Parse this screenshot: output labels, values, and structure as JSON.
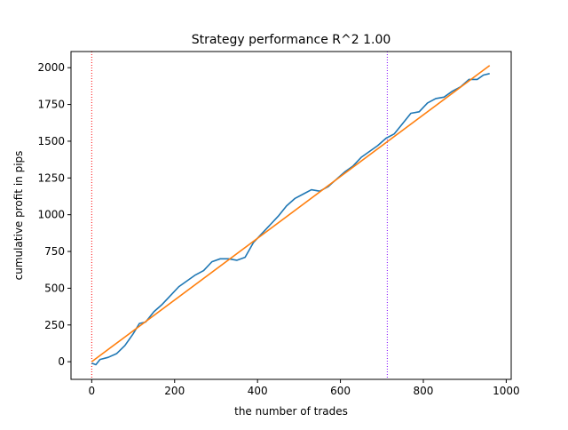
{
  "chart_data": {
    "type": "line",
    "title": "Strategy performance R^2 1.00",
    "xlabel": "the number of trades",
    "ylabel": "cumulative profit in pips",
    "xlim": [
      -50,
      1012
    ],
    "ylim": [
      -120,
      2110
    ],
    "xticks": [
      0,
      200,
      400,
      600,
      800,
      1000
    ],
    "yticks": [
      0,
      250,
      500,
      750,
      1000,
      1250,
      1500,
      1750,
      2000
    ],
    "grid": false,
    "legend": "none",
    "series": [
      {
        "color": "#1f77b4",
        "style": "solid",
        "x": [
          0,
          10,
          20,
          40,
          60,
          80,
          100,
          115,
          130,
          150,
          170,
          190,
          210,
          230,
          250,
          270,
          290,
          310,
          330,
          350,
          370,
          390,
          410,
          430,
          450,
          470,
          490,
          510,
          530,
          550,
          570,
          590,
          610,
          630,
          650,
          670,
          690,
          710,
          730,
          750,
          770,
          790,
          810,
          830,
          850,
          870,
          890,
          910,
          930,
          945,
          960
        ],
        "y": [
          -10,
          -20,
          15,
          30,
          55,
          110,
          190,
          260,
          270,
          340,
          390,
          450,
          510,
          550,
          590,
          620,
          680,
          700,
          700,
          690,
          710,
          810,
          870,
          930,
          990,
          1060,
          1110,
          1140,
          1170,
          1160,
          1190,
          1240,
          1290,
          1330,
          1390,
          1430,
          1470,
          1520,
          1550,
          1620,
          1690,
          1700,
          1760,
          1790,
          1800,
          1840,
          1870,
          1920,
          1920,
          1950,
          1960
        ]
      },
      {
        "color": "#ff7f0e",
        "style": "solid",
        "x": [
          0,
          960
        ],
        "y": [
          0,
          2015
        ]
      }
    ],
    "vlines": [
      {
        "x": 0,
        "color": "#ff0000",
        "style": "dotted"
      },
      {
        "x": 713,
        "color": "#7f00ff",
        "style": "dotted"
      }
    ]
  }
}
